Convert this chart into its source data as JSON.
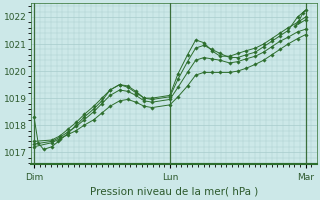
{
  "bg_color": "#cce8e8",
  "plot_bg_color": "#cce8e8",
  "grid_color": "#a8cccc",
  "line_color": "#2d6e2d",
  "marker_color": "#2d6e2d",
  "ylabel_ticks": [
    1017,
    1018,
    1019,
    1020,
    1021,
    1022
  ],
  "xlim": [
    -0.02,
    2.08
  ],
  "ylim": [
    1016.55,
    1022.5
  ],
  "xlabel": "Pression niveau de la mer( hPa )",
  "xtick_positions": [
    0.0,
    1.0,
    2.0
  ],
  "xtick_labels": [
    "Dim",
    "Lun",
    "Mar"
  ],
  "vline_positions": [
    0.0,
    1.0,
    2.0
  ],
  "series": [
    [
      0.0,
      1018.3,
      0.03,
      1017.35,
      0.07,
      1017.1,
      0.13,
      1017.2,
      0.18,
      1017.4,
      0.25,
      1017.7,
      0.31,
      1018.0,
      0.37,
      1018.3,
      0.44,
      1018.6,
      0.5,
      1018.9,
      0.56,
      1019.3,
      0.63,
      1019.5,
      0.69,
      1019.4,
      0.75,
      1019.2,
      0.81,
      1019.0,
      0.87,
      1019.0,
      1.0,
      1019.1,
      1.06,
      1019.9,
      1.13,
      1020.6,
      1.19,
      1021.15,
      1.25,
      1021.05,
      1.31,
      1020.75,
      1.37,
      1020.55,
      1.44,
      1020.55,
      1.5,
      1020.65,
      1.56,
      1020.75,
      1.63,
      1020.85,
      1.69,
      1021.0,
      1.75,
      1021.2,
      1.81,
      1021.4,
      1.87,
      1021.6,
      1.94,
      1021.8,
      2.0,
      1022.0
    ],
    [
      0.0,
      1017.4,
      0.13,
      1017.45,
      0.19,
      1017.6,
      0.25,
      1017.85,
      0.31,
      1018.1,
      0.37,
      1018.4,
      0.44,
      1018.7,
      0.5,
      1019.0,
      0.56,
      1019.3,
      0.63,
      1019.5,
      0.69,
      1019.45,
      0.75,
      1019.25,
      0.81,
      1019.0,
      0.87,
      1018.95,
      1.0,
      1019.05,
      1.06,
      1019.7,
      1.13,
      1020.35,
      1.19,
      1020.85,
      1.25,
      1020.95,
      1.31,
      1020.8,
      1.37,
      1020.65,
      1.44,
      1020.5,
      1.5,
      1020.5,
      1.56,
      1020.6,
      1.63,
      1020.7,
      1.69,
      1020.9,
      1.75,
      1021.1,
      1.81,
      1021.3,
      1.87,
      1021.5,
      1.94,
      1022.0,
      2.0,
      1022.25,
      1.98,
      1022.15,
      1.95,
      1021.85,
      1.92,
      1021.65,
      2.0,
      1021.9
    ],
    [
      0.0,
      1017.3,
      0.13,
      1017.4,
      0.19,
      1017.55,
      0.25,
      1017.75,
      0.31,
      1017.95,
      0.37,
      1018.2,
      0.44,
      1018.5,
      0.5,
      1018.8,
      0.56,
      1019.1,
      0.63,
      1019.3,
      0.69,
      1019.25,
      0.75,
      1019.1,
      0.81,
      1018.9,
      0.87,
      1018.85,
      1.0,
      1018.95,
      1.06,
      1019.4,
      1.13,
      1019.95,
      1.19,
      1020.4,
      1.25,
      1020.5,
      1.31,
      1020.45,
      1.37,
      1020.4,
      1.44,
      1020.3,
      1.5,
      1020.35,
      1.56,
      1020.45,
      1.63,
      1020.55,
      1.69,
      1020.7,
      1.75,
      1020.9,
      1.81,
      1021.1,
      1.87,
      1021.25,
      1.94,
      1021.45,
      2.0,
      1021.55
    ],
    [
      0.0,
      1017.2,
      0.13,
      1017.35,
      0.19,
      1017.5,
      0.25,
      1017.65,
      0.31,
      1017.8,
      0.37,
      1018.0,
      0.44,
      1018.2,
      0.5,
      1018.45,
      0.56,
      1018.7,
      0.63,
      1018.9,
      0.69,
      1018.95,
      0.75,
      1018.85,
      0.81,
      1018.7,
      0.87,
      1018.65,
      1.0,
      1018.75,
      1.06,
      1019.05,
      1.13,
      1019.45,
      1.19,
      1019.85,
      1.25,
      1019.95,
      1.31,
      1019.95,
      1.37,
      1019.95,
      1.44,
      1019.95,
      1.5,
      1020.0,
      1.56,
      1020.1,
      1.63,
      1020.25,
      1.69,
      1020.4,
      1.75,
      1020.6,
      1.81,
      1020.8,
      1.87,
      1021.0,
      1.94,
      1021.2,
      2.0,
      1021.35
    ]
  ]
}
